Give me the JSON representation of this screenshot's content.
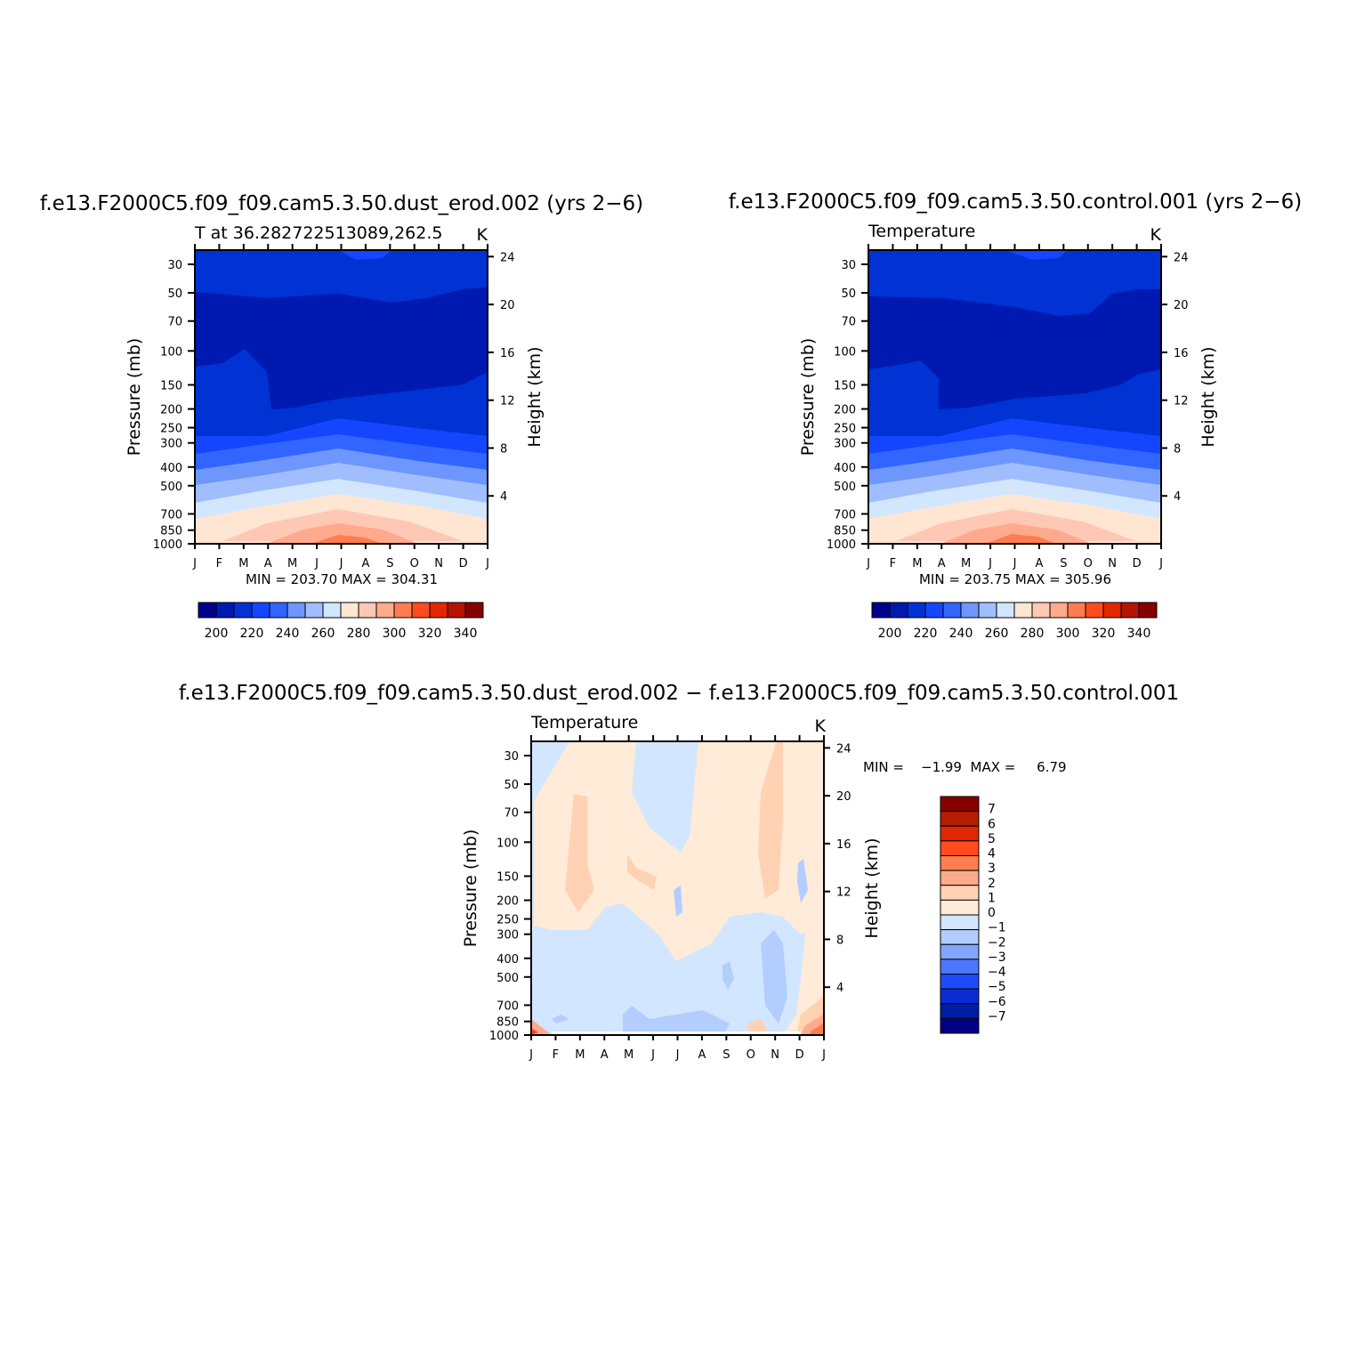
{
  "panels": [
    {
      "id": "p1",
      "title": "f.e13.F2000C5.f09_f09.cam5.3.50.dust_erod.002 (yrs 2−6)",
      "subtitle_left": "T at 36.282722513089,262.5",
      "subtitle_right": "K",
      "stats": "MIN = 203.70 MAX = 304.31"
    },
    {
      "id": "p2",
      "title": "f.e13.F2000C5.f09_f09.cam5.3.50.control.001 (yrs 2−6)",
      "subtitle_left": "Temperature",
      "subtitle_right": "K",
      "stats": "MIN = 203.75 MAX = 305.96"
    },
    {
      "id": "p3",
      "title": "f.e13.F2000C5.f09_f09.cam5.3.50.dust_erod.002 − f.e13.F2000C5.f09_f09.cam5.3.50.control.001",
      "subtitle_left": "Temperature",
      "subtitle_right": "K",
      "stats": "MIN =    −1.99  MAX =     6.79"
    }
  ],
  "axes": {
    "ylabel_left": "Pressure (mb)",
    "ylabel_right": "Height (km)",
    "x_ticks": [
      "J",
      "F",
      "M",
      "A",
      "M",
      "J",
      "J",
      "A",
      "S",
      "O",
      "N",
      "D",
      "J"
    ],
    "pressure_ticks": [
      "30",
      "50",
      "70",
      "100",
      "150",
      "200",
      "250",
      "300",
      "400",
      "500",
      "700",
      "850",
      "1000"
    ],
    "height_ticks": [
      "24",
      "20",
      "16",
      "12",
      "8",
      "4"
    ]
  },
  "colorbar_abs": {
    "labels": [
      "200",
      "220",
      "240",
      "260",
      "280",
      "300",
      "320",
      "340"
    ],
    "colors": [
      "#00008c",
      "#0019b0",
      "#0032d4",
      "#1446ff",
      "#3264ff",
      "#6e96ff",
      "#a0beff",
      "#d2e6ff",
      "#ffe6d2",
      "#ffc8b4",
      "#ffaa8c",
      "#ff7d50",
      "#ff4b1e",
      "#e12800",
      "#b41400",
      "#870000"
    ]
  },
  "colorbar_diff": {
    "labels": [
      "7",
      "6",
      "5",
      "4",
      "3",
      "2",
      "1",
      "0",
      "−1",
      "−2",
      "−3",
      "−4",
      "−5",
      "−6",
      "−7"
    ],
    "colors": [
      "#870000",
      "#b41e00",
      "#e12800",
      "#ff4b1e",
      "#ff7d50",
      "#ffaa8c",
      "#ffd2b4",
      "#ffebd7",
      "#d2e6ff",
      "#b4cdff",
      "#82a5ff",
      "#4b78ff",
      "#1e4bff",
      "#0a2dd2",
      "#001ea5",
      "#000087"
    ]
  },
  "chart_data": [
    {
      "type": "heatmap",
      "title": "f.e13.F2000C5.f09_f09.cam5.3.50.dust_erod.002 (yrs 2−6)",
      "x": [
        "J",
        "F",
        "M",
        "A",
        "M",
        "J",
        "J",
        "A",
        "S",
        "O",
        "N",
        "D",
        "J"
      ],
      "y_pressure_mb": [
        1000,
        850,
        700,
        500,
        400,
        300,
        250,
        200,
        150,
        100,
        70,
        50,
        30
      ],
      "levels": [
        200,
        210,
        220,
        230,
        240,
        250,
        260,
        270,
        280,
        290,
        300,
        310,
        320,
        330,
        340
      ],
      "units": "K",
      "min": 203.7,
      "max": 304.31
    },
    {
      "type": "heatmap",
      "title": "f.e13.F2000C5.f09_f09.cam5.3.50.control.001 (yrs 2−6)",
      "x": [
        "J",
        "F",
        "M",
        "A",
        "M",
        "J",
        "J",
        "A",
        "S",
        "O",
        "N",
        "D",
        "J"
      ],
      "y_pressure_mb": [
        1000,
        850,
        700,
        500,
        400,
        300,
        250,
        200,
        150,
        100,
        70,
        50,
        30
      ],
      "levels": [
        200,
        210,
        220,
        230,
        240,
        250,
        260,
        270,
        280,
        290,
        300,
        310,
        320,
        330,
        340
      ],
      "units": "K",
      "min": 203.75,
      "max": 305.96
    },
    {
      "type": "heatmap",
      "title": "f.e13.F2000C5.f09_f09.cam5.3.50.dust_erod.002 − f.e13.F2000C5.f09_f09.cam5.3.50.control.001",
      "x": [
        "J",
        "F",
        "M",
        "A",
        "M",
        "J",
        "J",
        "A",
        "S",
        "O",
        "N",
        "D",
        "J"
      ],
      "y_pressure_mb": [
        1000,
        850,
        700,
        500,
        400,
        300,
        250,
        200,
        150,
        100,
        70,
        50,
        30
      ],
      "levels": [
        -7,
        -6,
        -5,
        -4,
        -3,
        -2,
        -1,
        0,
        1,
        2,
        3,
        4,
        5,
        6,
        7
      ],
      "units": "K",
      "min": -1.99,
      "max": 6.79
    }
  ]
}
